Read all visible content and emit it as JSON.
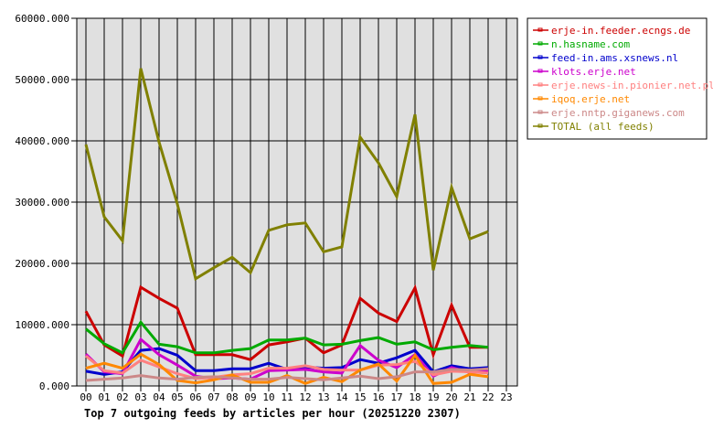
{
  "chart_data": {
    "type": "line",
    "title": "Top 7 outgoing feeds by articles per hour (20251220 2307)",
    "xlabel": "",
    "ylabel": "",
    "ylim": [
      0,
      60000
    ],
    "yticks": [
      "0.000",
      "10000.000",
      "20000.000",
      "30000.000",
      "40000.000",
      "50000.000",
      "60000.000"
    ],
    "ytick_values": [
      0,
      10000,
      20000,
      30000,
      40000,
      50000,
      60000
    ],
    "categories": [
      "00",
      "01",
      "02",
      "03",
      "04",
      "05",
      "06",
      "07",
      "08",
      "09",
      "10",
      "11",
      "12",
      "13",
      "14",
      "15",
      "16",
      "17",
      "18",
      "19",
      "20",
      "21",
      "22",
      "23"
    ],
    "grid": true,
    "legend_position": "right",
    "plot_background": "#e0e0e0",
    "series": [
      {
        "name": "erje-in.feeder.ecngs.de",
        "color": "#cc0000",
        "values": [
          12200,
          6700,
          4900,
          16100,
          14300,
          12700,
          5100,
          5100,
          5100,
          4300,
          6700,
          7200,
          7800,
          5400,
          6700,
          14300,
          11900,
          10500,
          16000,
          5100,
          13200,
          6300,
          6300
        ]
      },
      {
        "name": "n.hasname.com",
        "color": "#00aa00",
        "values": [
          9300,
          6900,
          5400,
          10400,
          6800,
          6400,
          5400,
          5400,
          5800,
          6100,
          7500,
          7500,
          7800,
          6700,
          6800,
          7400,
          7900,
          6800,
          7200,
          5900,
          6300,
          6600,
          6300
        ]
      },
      {
        "name": "feed-in.ams.xsnews.nl",
        "color": "#0000cc",
        "values": [
          2400,
          1900,
          2300,
          5800,
          6100,
          5000,
          2500,
          2500,
          2800,
          2800,
          3700,
          2700,
          3100,
          2900,
          3000,
          4300,
          3700,
          4600,
          5800,
          2300,
          3300,
          2800,
          3000
        ]
      },
      {
        "name": "klots.erje.net",
        "color": "#cc00cc",
        "values": [
          5200,
          2300,
          2000,
          7600,
          5100,
          3400,
          1600,
          1200,
          1300,
          1100,
          2500,
          2600,
          2700,
          2300,
          2100,
          6600,
          4200,
          3000,
          5100,
          1600,
          3000,
          2200,
          2500
        ]
      },
      {
        "name": "erje.news-in.pionier.net.pl",
        "color": "#ff8080",
        "values": [
          4900,
          2500,
          2100,
          4200,
          3100,
          2000,
          1200,
          1400,
          1800,
          2000,
          2900,
          2900,
          3300,
          2700,
          2600,
          2600,
          3400,
          3500,
          4000,
          1800,
          2400,
          2300,
          2100
        ]
      },
      {
        "name": "iqoq.erje.net",
        "color": "#ff8800",
        "values": [
          2900,
          3700,
          2900,
          5200,
          3500,
          900,
          500,
          1000,
          1800,
          600,
          600,
          1700,
          400,
          1400,
          700,
          2600,
          3600,
          800,
          5000,
          400,
          600,
          1900,
          1500
        ]
      },
      {
        "name": "erje.nntp.giganews.com",
        "color": "#cc8888",
        "values": [
          900,
          1100,
          1300,
          1700,
          1300,
          1100,
          1400,
          1500,
          1300,
          1100,
          1100,
          1400,
          1200,
          1000,
          1300,
          1600,
          1200,
          1500,
          2300,
          2300,
          2700,
          2600,
          2800
        ]
      },
      {
        "name": "TOTAL (all feeds)",
        "color": "#808000",
        "values": [
          39400,
          27600,
          23700,
          51800,
          39800,
          29700,
          17500,
          19300,
          21000,
          18500,
          25400,
          26300,
          26600,
          21900,
          22700,
          40600,
          36400,
          30900,
          44300,
          18900,
          32400,
          24000,
          25200
        ]
      }
    ]
  }
}
